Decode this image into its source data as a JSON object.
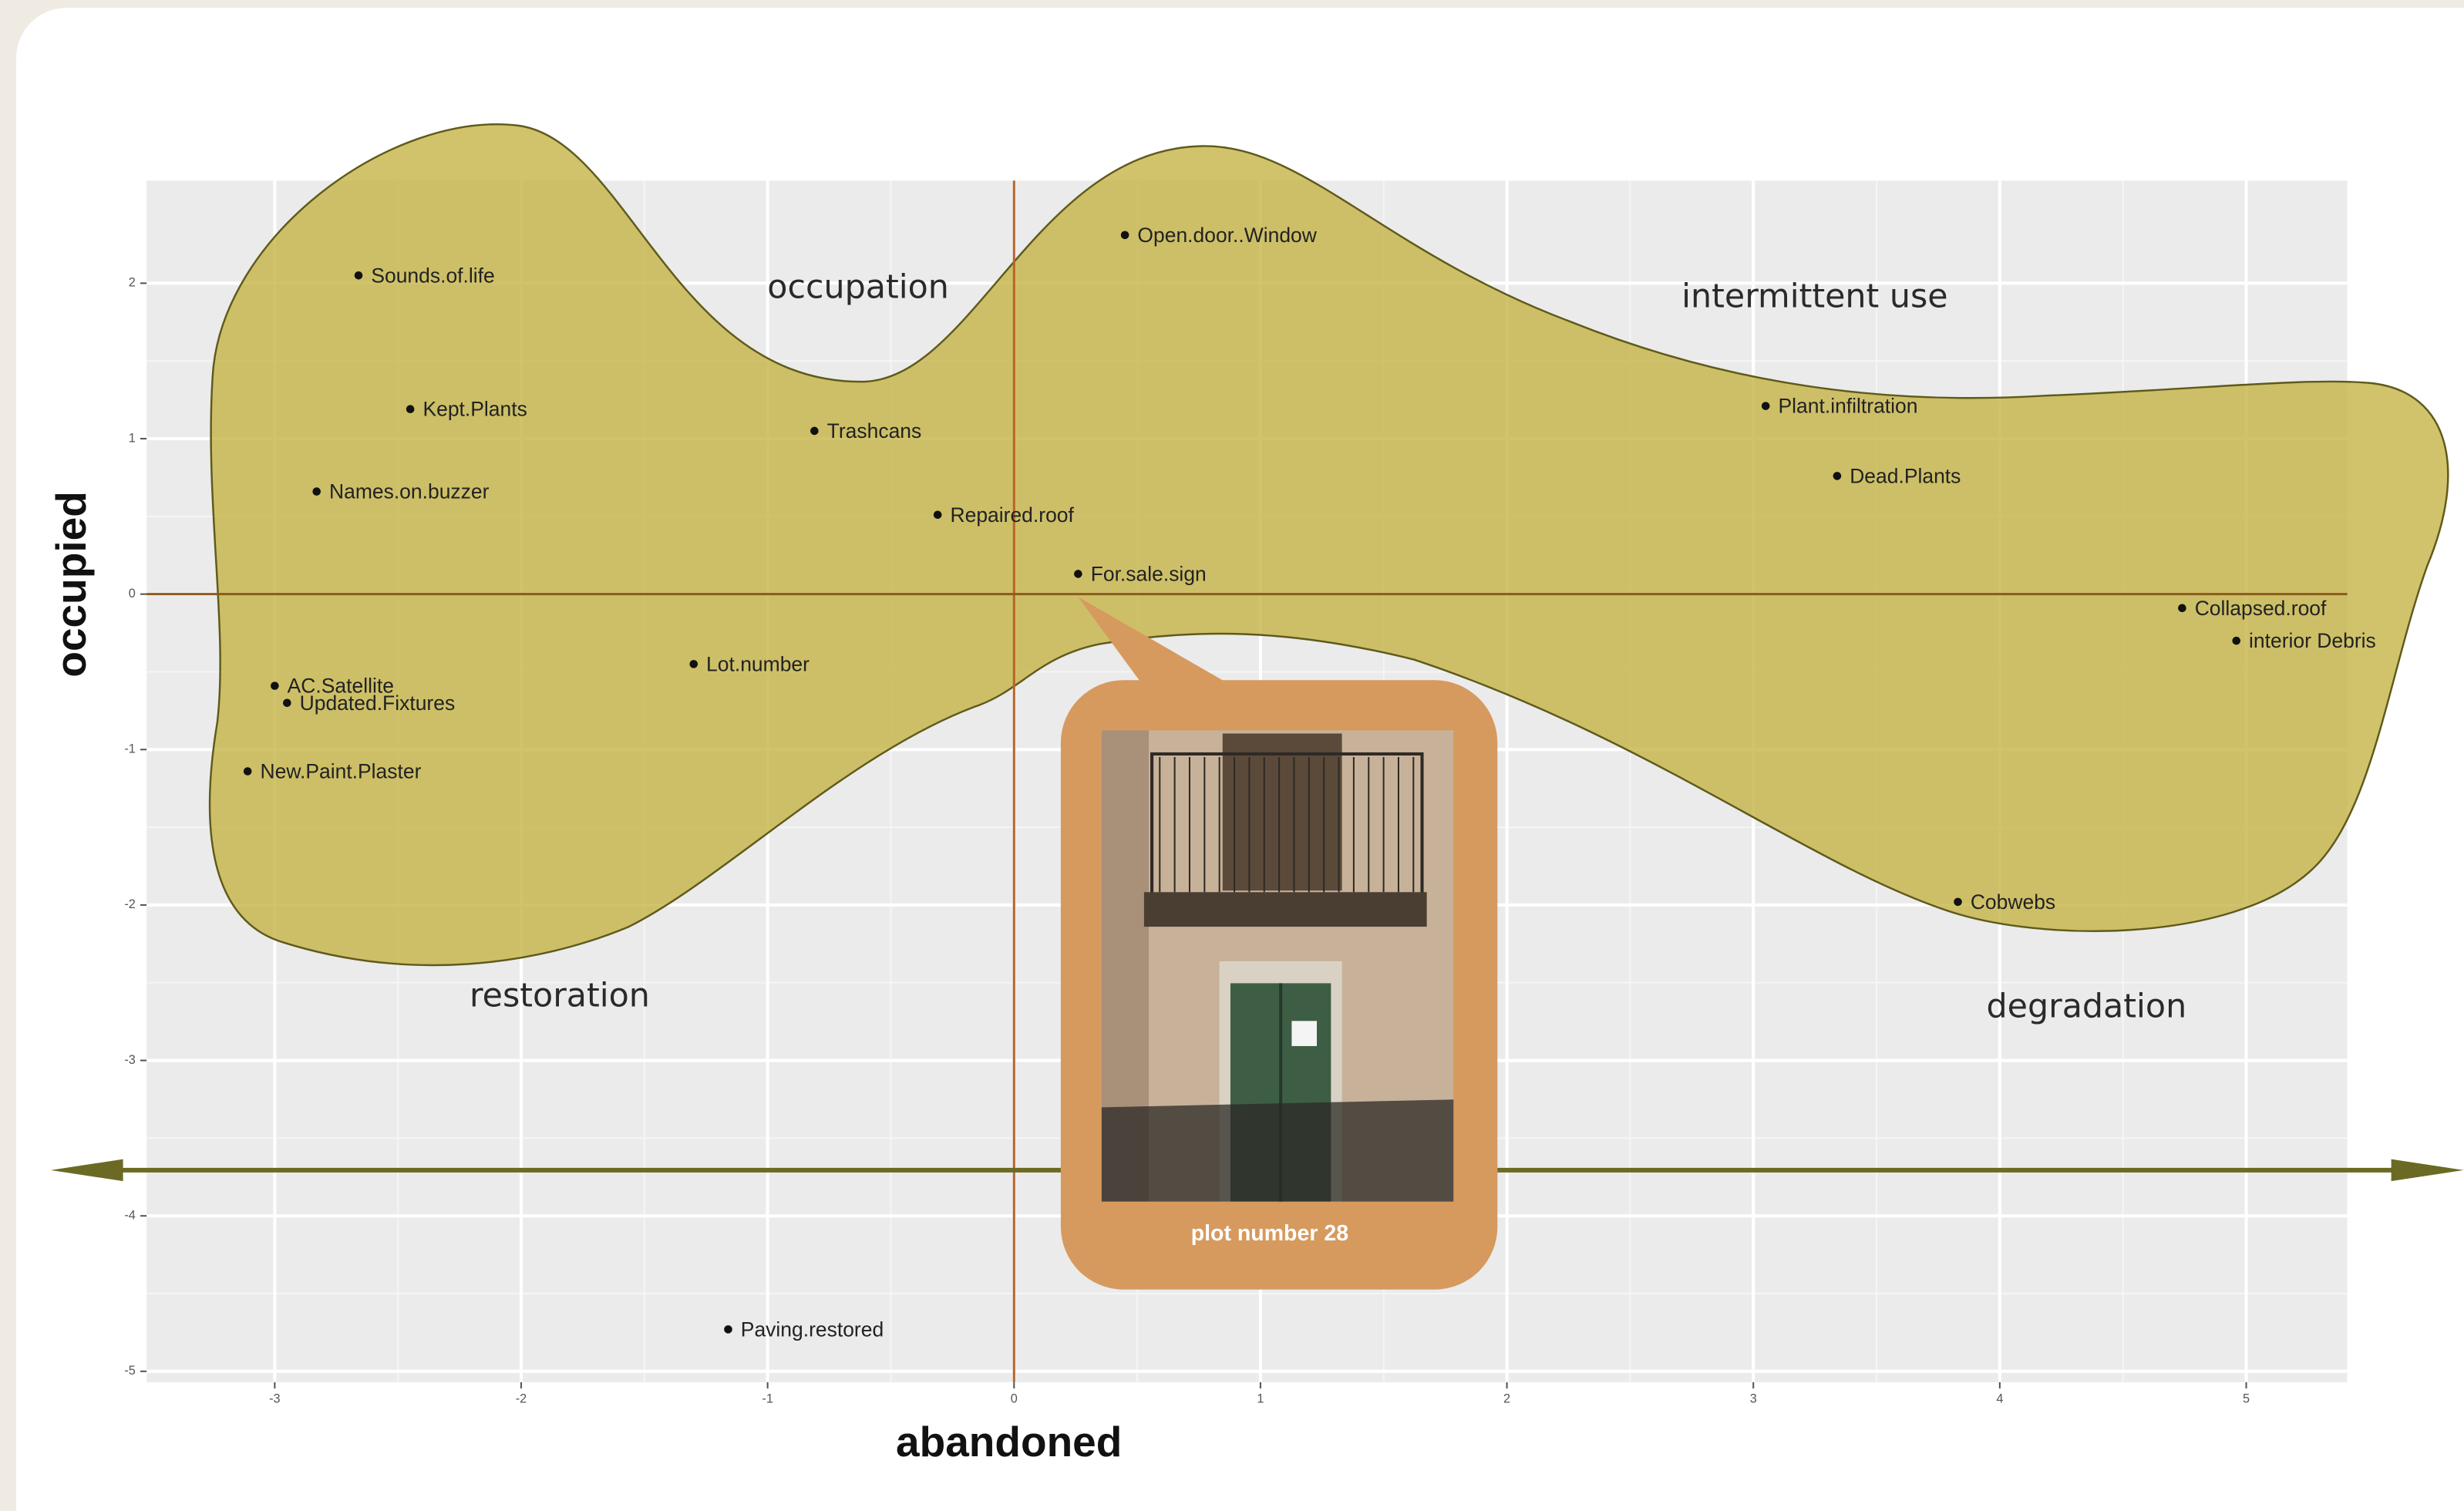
{
  "chart_data": {
    "type": "scatter",
    "x_label": "abandoned",
    "y_label": "occupied",
    "labels": [
      "Sounds.of.life",
      "Kept.Plants",
      "Names.on.buzzer",
      "AC.Satellite",
      "Updated.Fixtures",
      "New.Paint.Plaster",
      "Lot.number",
      "Trashcans",
      "Repaired.roof",
      "For.sale.sign",
      "Open.door..Window",
      "Plant.infiltration",
      "Dead.Plants",
      "Collapsed.roof",
      "interior Debris",
      "Cobwebs",
      "Paving.restored"
    ],
    "x": [
      -2.66,
      -2.45,
      -2.83,
      -3.0,
      -2.95,
      -3.11,
      -1.3,
      -0.81,
      -0.31,
      0.26,
      0.45,
      3.05,
      3.34,
      4.74,
      4.96,
      3.83,
      -1.16
    ],
    "values": [
      2.05,
      1.19,
      0.66,
      -0.59,
      -0.7,
      -1.14,
      -0.45,
      1.05,
      0.51,
      0.13,
      2.31,
      1.21,
      0.76,
      -0.09,
      -0.3,
      -1.98,
      -4.73
    ],
    "color": "#111111",
    "xlim": [
      -3.52,
      5.41
    ],
    "ylim": [
      -5.07,
      2.66
    ],
    "xticks": [
      -3,
      -2,
      -1,
      0,
      1,
      2,
      3,
      4,
      5
    ],
    "yticks": [
      -5,
      -4,
      -3,
      -2,
      -1,
      0,
      1,
      2
    ],
    "grid": true,
    "annotations": [
      "occupation",
      "intermittent use",
      "restoration",
      "degradation"
    ],
    "photo_caption": "plot number 28"
  }
}
